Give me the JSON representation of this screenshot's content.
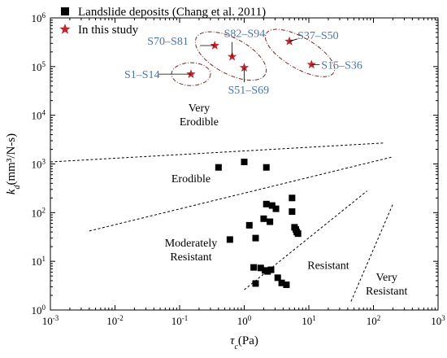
{
  "chart_data": {
    "type": "scatter",
    "xscale": "log",
    "yscale": "log",
    "xlim": [
      0.001,
      1000
    ],
    "ylim": [
      1,
      1000000
    ],
    "xticks": [
      {
        "value": 0.001,
        "base": "10",
        "exp": "-3"
      },
      {
        "value": 0.01,
        "base": "10",
        "exp": "-2"
      },
      {
        "value": 0.1,
        "base": "10",
        "exp": "-1"
      },
      {
        "value": 1,
        "base": "10",
        "exp": "0"
      },
      {
        "value": 10,
        "base": "10",
        "exp": "1"
      },
      {
        "value": 100,
        "base": "10",
        "exp": "2"
      },
      {
        "value": 1000,
        "base": "10",
        "exp": "3"
      }
    ],
    "yticks": [
      {
        "value": 1,
        "base": "10",
        "exp": "0"
      },
      {
        "value": 10,
        "base": "10",
        "exp": "1"
      },
      {
        "value": 100,
        "base": "10",
        "exp": "2"
      },
      {
        "value": 1000,
        "base": "10",
        "exp": "3"
      },
      {
        "value": 10000,
        "base": "10",
        "exp": "4"
      },
      {
        "value": 100000,
        "base": "10",
        "exp": "5"
      },
      {
        "value": 1000000,
        "base": "10",
        "exp": "6"
      }
    ],
    "xlabel": {
      "main": "τ",
      "sub": "c",
      "rest": "(Pa)"
    },
    "ylabel": {
      "main": "k",
      "sub": "d",
      "rest": "(mm³/N-s)"
    },
    "legend": {
      "position": "top-left",
      "items": [
        {
          "label": "Landslide deposits (Chang et al. 2011)",
          "marker": "square",
          "color": "#000000"
        },
        {
          "label": "In this study",
          "marker": "star",
          "color": "#c0282d"
        }
      ]
    },
    "series": [
      {
        "name": "Landslide deposits (Chang et al. 2011)",
        "marker": "square",
        "color": "#000000",
        "points": [
          {
            "x": 0.4,
            "y": 850
          },
          {
            "x": 1.0,
            "y": 1100
          },
          {
            "x": 2.2,
            "y": 850
          },
          {
            "x": 0.6,
            "y": 28
          },
          {
            "x": 1.2,
            "y": 55
          },
          {
            "x": 1.5,
            "y": 30
          },
          {
            "x": 2.0,
            "y": 75
          },
          {
            "x": 2.2,
            "y": 150
          },
          {
            "x": 2.5,
            "y": 65
          },
          {
            "x": 2.7,
            "y": 140
          },
          {
            "x": 3.1,
            "y": 120
          },
          {
            "x": 5.5,
            "y": 200
          },
          {
            "x": 5.5,
            "y": 105
          },
          {
            "x": 6.0,
            "y": 50
          },
          {
            "x": 6.5,
            "y": 40
          },
          {
            "x": 6.8,
            "y": 37
          },
          {
            "x": 6.3,
            "y": 45
          },
          {
            "x": 1.4,
            "y": 7.5
          },
          {
            "x": 1.8,
            "y": 7.3
          },
          {
            "x": 2.1,
            "y": 6.5
          },
          {
            "x": 2.3,
            "y": 6.2
          },
          {
            "x": 2.6,
            "y": 6.7
          },
          {
            "x": 3.3,
            "y": 4.6
          },
          {
            "x": 3.8,
            "y": 3.6
          },
          {
            "x": 4.5,
            "y": 3.3
          },
          {
            "x": 1.5,
            "y": 3.5
          }
        ]
      },
      {
        "name": "In this study",
        "marker": "star",
        "color": "#c0282d",
        "points": [
          {
            "x": 0.15,
            "y": 70000,
            "label": "S1–S14"
          },
          {
            "x": 0.35,
            "y": 270000,
            "label": "S70–S81"
          },
          {
            "x": 0.65,
            "y": 160000,
            "label": "S82–S94"
          },
          {
            "x": 1.0,
            "y": 95000,
            "label": "S51–S69"
          },
          {
            "x": 5.0,
            "y": 330000,
            "label": "S37–S50"
          },
          {
            "x": 11.0,
            "y": 110000,
            "label": "S15–S36"
          }
        ]
      }
    ],
    "boundaries": [
      {
        "from": [
          0.001,
          1100
        ],
        "to": [
          150,
          2700
        ]
      },
      {
        "from": [
          0.004,
          42
        ],
        "to": [
          200,
          1400
        ]
      },
      {
        "from": [
          1.0,
          2.6
        ],
        "to": [
          80,
          280
        ]
      },
      {
        "from": [
          45,
          1.5
        ],
        "to": [
          200,
          150
        ]
      }
    ],
    "regions": [
      {
        "lines": [
          "Very",
          "Erodible"
        ],
        "x": 0.2,
        "y": 12000
      },
      {
        "lines": [
          "Erodible"
        ],
        "x": 0.15,
        "y": 420
      },
      {
        "lines": [
          "Moderately",
          "Resistant"
        ],
        "x": 0.15,
        "y": 20
      },
      {
        "lines": [
          "Resistant"
        ],
        "x": 20,
        "y": 7
      },
      {
        "lines": [
          "Very",
          "Resistant"
        ],
        "x": 160,
        "y": 4
      }
    ],
    "groups": [
      {
        "cx": 0.15,
        "cy": 70000,
        "rx": 24,
        "ry": 14,
        "rot": 0
      },
      {
        "cx": 0.62,
        "cy": 165000,
        "rx": 48,
        "ry": 22,
        "rot": 28
      },
      {
        "cx": 7.3,
        "cy": 190000,
        "rx": 48,
        "ry": 19,
        "rot": 30
      }
    ],
    "grid": false
  }
}
